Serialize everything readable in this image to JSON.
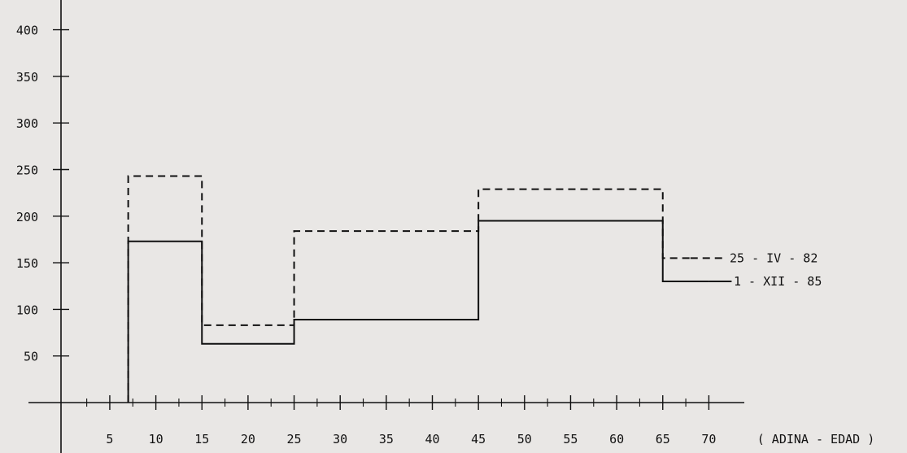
{
  "chart_data": {
    "type": "line",
    "step": true,
    "xlabel": "( ADINA - EDAD )",
    "x_ticks": [
      5,
      10,
      15,
      20,
      25,
      30,
      35,
      40,
      45,
      50,
      55,
      60,
      65,
      70
    ],
    "y_ticks": [
      50,
      100,
      150,
      200,
      250,
      300,
      350,
      400
    ],
    "xlim": [
      0,
      75
    ],
    "ylim": [
      0,
      420
    ],
    "grid": false,
    "legend_position": "right",
    "series": [
      {
        "name": "25 - IV - 82",
        "style": "dashed",
        "bins": [
          {
            "x0": 7,
            "x1": 15,
            "y": 243
          },
          {
            "x0": 15,
            "x1": 25,
            "y": 83
          },
          {
            "x0": 25,
            "x1": 45,
            "y": 184
          },
          {
            "x0": 45,
            "x1": 65,
            "y": 229
          },
          {
            "x0": 65,
            "x1": 68,
            "y": 155
          }
        ]
      },
      {
        "name": "1 - XII - 85",
        "style": "solid",
        "bins": [
          {
            "x0": 7,
            "x1": 15,
            "y": 173
          },
          {
            "x0": 15,
            "x1": 25,
            "y": 63
          },
          {
            "x0": 25,
            "x1": 45,
            "y": 89
          },
          {
            "x0": 45,
            "x1": 65,
            "y": 195
          },
          {
            "x0": 65,
            "x1": 70,
            "y": 130
          }
        ]
      }
    ]
  },
  "colors": {
    "ink": "#111111",
    "paper": "#e9e7e5"
  }
}
